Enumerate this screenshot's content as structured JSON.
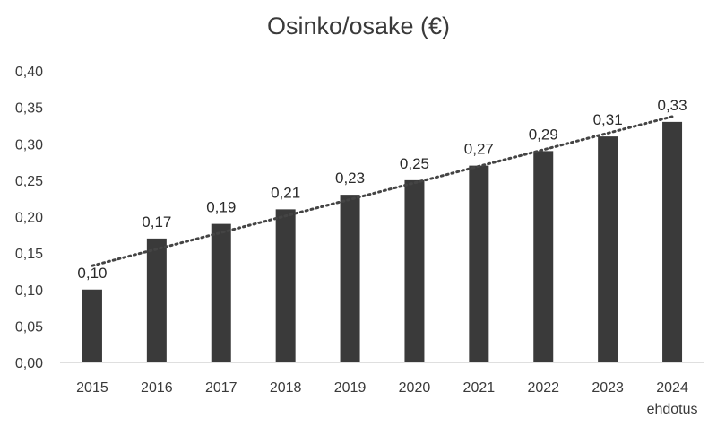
{
  "chart_data": {
    "type": "bar",
    "title": "Osinko/osake (€)",
    "categories": [
      "2015",
      "2016",
      "2017",
      "2018",
      "2019",
      "2020",
      "2021",
      "2022",
      "2023",
      "2024"
    ],
    "category_sublabels": [
      "",
      "",
      "",
      "",
      "",
      "",
      "",
      "",
      "",
      "ehdotus"
    ],
    "series": [
      {
        "values": [
          0.1,
          0.17,
          0.19,
          0.21,
          0.23,
          0.25,
          0.27,
          0.29,
          0.31,
          0.33
        ]
      }
    ],
    "data_labels": [
      "0,10",
      "0,17",
      "0,19",
      "0,21",
      "0,23",
      "0,25",
      "0,27",
      "0,29",
      "0,31",
      "0,33"
    ],
    "y_ticks": [
      "0,00",
      "0,05",
      "0,10",
      "0,15",
      "0,20",
      "0,25",
      "0,30",
      "0,35",
      "0,40"
    ],
    "ylim": [
      0,
      0.4
    ],
    "trendline": "linear-dotted",
    "grid": false,
    "legend": "none",
    "bar_color": "#3a3a3a",
    "trendline_color": "#444444"
  }
}
